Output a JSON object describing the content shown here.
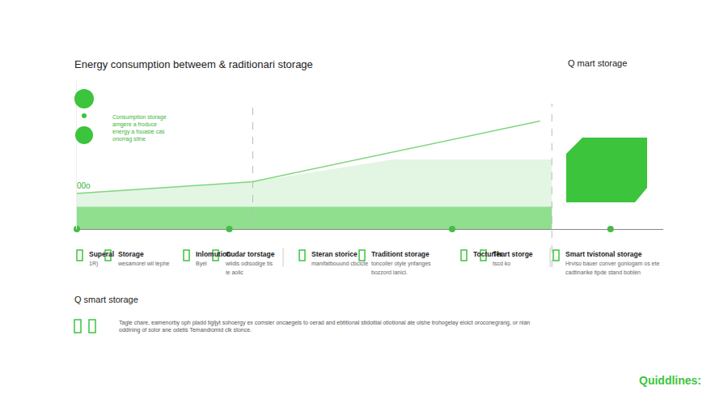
{
  "chart_data": {
    "type": "line",
    "title": "Energy consumption betweem & raditionari storage",
    "side_heading": "Q mart storage",
    "note": [
      "Consumption storage",
      "amgere a froduce",
      "energy a fouasie cas",
      "onorrag sitne"
    ],
    "axis_note": "00o",
    "xlim": [
      0,
      100
    ],
    "ylim": [
      0,
      100
    ],
    "tick_labels": false,
    "grid": false,
    "x_lines": [
      30,
      81
    ],
    "series": [
      {
        "type": "area",
        "color": "#e3f5e3",
        "x": [
          0,
          30,
          54,
          81
        ],
        "values": [
          24,
          32,
          47,
          47
        ]
      },
      {
        "type": "area",
        "color": "#8fdf8f",
        "x": [
          0,
          81
        ],
        "values": [
          15,
          15
        ]
      },
      {
        "type": "line",
        "color": "#7ed67e",
        "x": [
          0,
          30,
          79
        ],
        "values": [
          24,
          32,
          73
        ]
      },
      {
        "type": "scatter",
        "color": "#3cc43c",
        "marker": "circle",
        "x": [
          0,
          26,
          64,
          91
        ],
        "values": [
          0,
          0,
          0,
          0
        ]
      }
    ],
    "labels": [
      {
        "title": "Superal",
        "text": [
          "1R)"
        ]
      },
      {
        "title": "Storage",
        "text": [
          "wesamorel wil tephe"
        ]
      },
      {
        "title": "Inlomution",
        "text": [
          "Byel"
        ]
      },
      {
        "title": "Cudar torstage",
        "text": [
          "wiidis odisodige tis",
          "ie aolic"
        ]
      },
      {
        "title": "Steran storice",
        "text": [
          "manifatbouund cbcicte"
        ]
      },
      {
        "title": "Traditiont storage",
        "text": [
          "toncoller otyle ynfanges",
          "bozzord lanicl."
        ]
      },
      {
        "title": "Tocturier"
      },
      {
        "title": "Thart storge",
        "text": [
          "tscd ko"
        ]
      },
      {
        "title": "Smart tvistonal storage",
        "text": [
          "Hrviso bauer conver goniogam os ete",
          "cadtinarike tipde stand boblen"
        ]
      }
    ],
    "section_heading": "Q smart storage",
    "paragraph": [
      "Tagle chare, eamenorby oph pladd tigljyt sohoergy ex comsier oncaegels to oerad and ebtitional stidoitial otiotional ate olshe trohogelay eloict oroconegrang, or nian",
      "oddining of solor ane odetis Temandiomid clk stonce."
    ],
    "footer": "Quiddlines:"
  }
}
